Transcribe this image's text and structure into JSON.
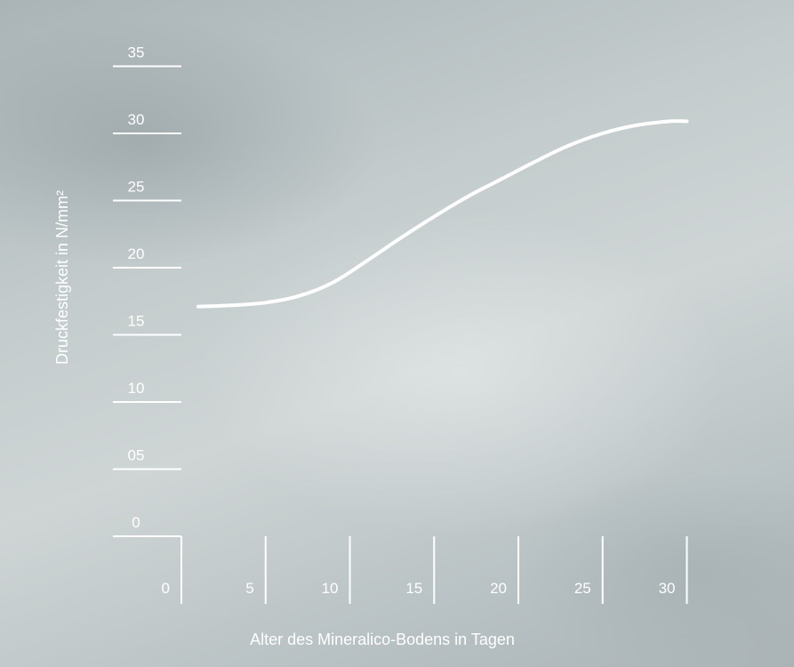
{
  "chart_data": {
    "type": "line",
    "title": "",
    "xlabel": "Alter des Mineralico-Bodens in Tagen",
    "ylabel": "Druckfestigkeit in N/mm²",
    "x_tick_labels": [
      "0",
      "5",
      "10",
      "15",
      "20",
      "25",
      "30"
    ],
    "y_tick_labels": [
      "0",
      "05",
      "10",
      "15",
      "20",
      "25",
      "30",
      "35"
    ],
    "x_ticks": [
      0,
      5,
      10,
      15,
      20,
      25,
      30
    ],
    "y_ticks": [
      0,
      5,
      10,
      15,
      20,
      25,
      30,
      35
    ],
    "xlim": [
      0,
      30
    ],
    "ylim": [
      0,
      35
    ],
    "grid": false,
    "legend": "none",
    "line_color": "#ffffff",
    "series": [
      {
        "x": [
          1,
          3,
          5,
          7,
          9,
          11,
          13,
          15,
          17,
          19,
          21,
          23,
          25,
          27,
          29,
          30
        ],
        "values": [
          17.1,
          17.2,
          17.4,
          17.9,
          18.9,
          20.5,
          22.2,
          23.8,
          25.3,
          26.6,
          27.9,
          29.1,
          30.0,
          30.6,
          30.9,
          30.9
        ]
      }
    ]
  }
}
